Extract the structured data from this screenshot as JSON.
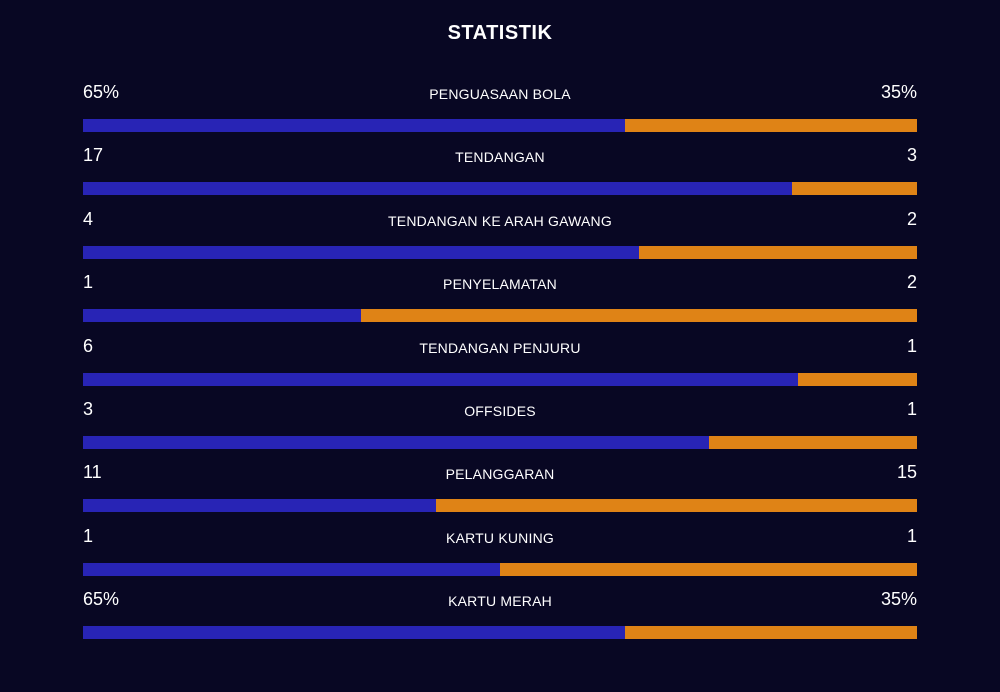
{
  "title": "STATISTIK",
  "colors": {
    "background": "#080723",
    "home": "#2824b5",
    "away": "#df8316",
    "text": "#ffffff"
  },
  "stats": [
    {
      "label": "PENGUASAAN BOLA",
      "home": "65%",
      "away": "35%",
      "home_share": 0.65
    },
    {
      "label": "TENDANGAN",
      "home": "17",
      "away": "3",
      "home_share": 0.85
    },
    {
      "label": "TENDANGAN KE ARAH GAWANG",
      "home": "4",
      "away": "2",
      "home_share": 0.667
    },
    {
      "label": "PENYELAMATAN",
      "home": "1",
      "away": "2",
      "home_share": 0.333
    },
    {
      "label": "TENDANGAN PENJURU",
      "home": "6",
      "away": "1",
      "home_share": 0.857
    },
    {
      "label": "OFFSIDES",
      "home": "3",
      "away": "1",
      "home_share": 0.75
    },
    {
      "label": "PELANGGARAN",
      "home": "11",
      "away": "15",
      "home_share": 0.423
    },
    {
      "label": "KARTU KUNING",
      "home": "1",
      "away": "1",
      "home_share": 0.5
    },
    {
      "label": "KARTU MERAH",
      "home": "65%",
      "away": "35%",
      "home_share": 0.65
    }
  ]
}
